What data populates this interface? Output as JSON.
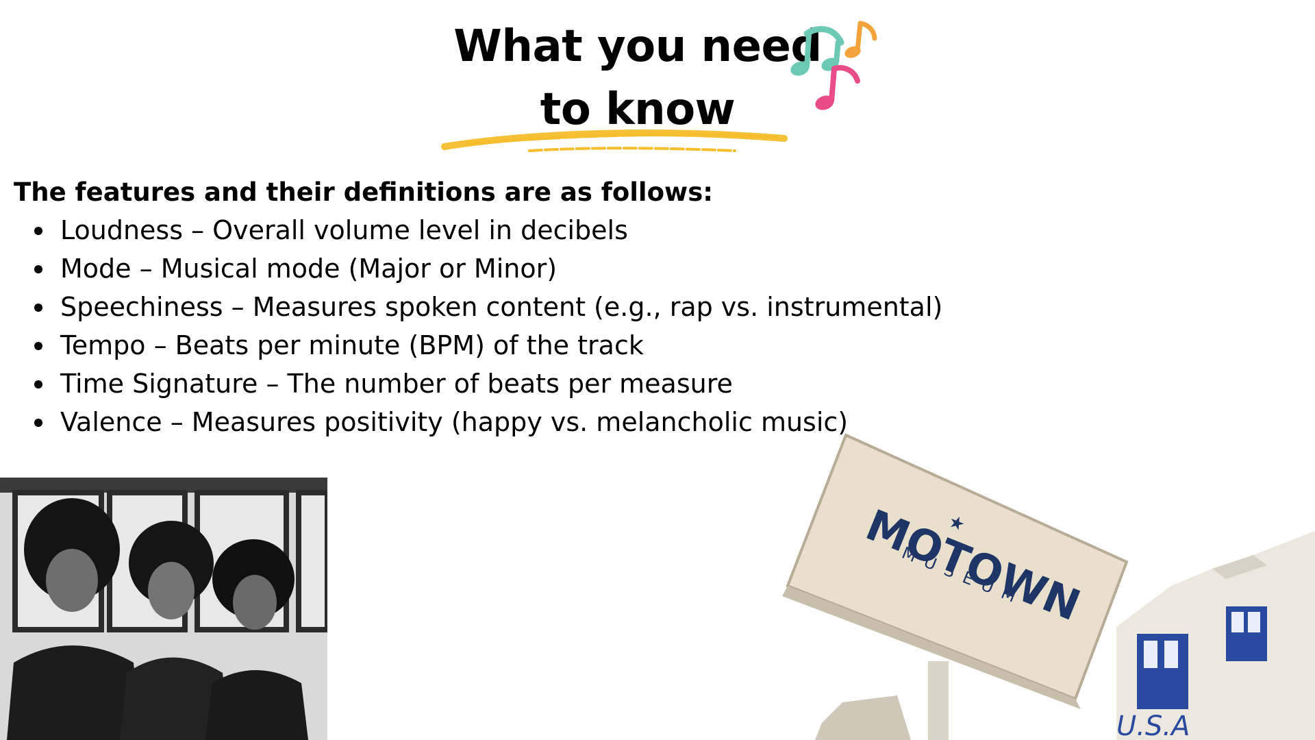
{
  "header": {
    "title_line1": "What you need",
    "title_line2": "to know",
    "note_colors": [
      "#6cc9b4",
      "#f3a33b",
      "#ea4c89"
    ],
    "underline_color": "#f6be2c"
  },
  "content": {
    "intro": "The features and their definitions are as follows:",
    "features": [
      "Loudness – Overall volume level in decibels",
      "Mode – Musical mode (Major or Minor)",
      "Speechiness – Measures spoken content (e.g., rap vs. instrumental)",
      "Tempo – Beats per minute (BPM) of the track",
      "Time Signature – The number of beats per measure",
      "Valence – Measures positivity (happy vs. melancholic music)"
    ]
  },
  "images": {
    "museum_sign_line1": "MOTOWN",
    "museum_sign_line2": "MUSEUM",
    "building_sign": "U.S.A",
    "sign_text_color": "#1f3566"
  }
}
